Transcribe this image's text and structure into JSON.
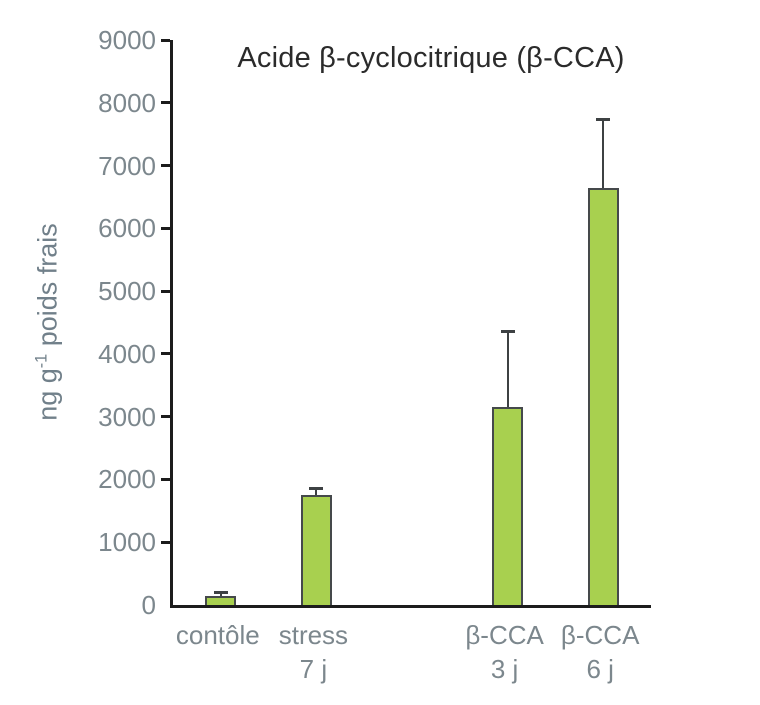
{
  "figure": {
    "background": "#ffffff"
  },
  "title": "Acide β-cyclocitrique (β-CCA)",
  "ylabel_parts": {
    "prefix": "ng g",
    "superscript": "-1",
    "suffix": " poids frais"
  },
  "chart_data": {
    "type": "bar",
    "title": "Acide β-cyclocitrique (β-CCA)",
    "ylabel": "ng g-1 poids frais",
    "xlabel": "",
    "ylim": [
      0,
      9000
    ],
    "ytick_step": 1000,
    "ytick_labels": [
      "0",
      "1000",
      "2000",
      "3000",
      "4000",
      "5000",
      "6000",
      "7000",
      "8000",
      "9000"
    ],
    "grid": false,
    "legend": false,
    "slots": 5,
    "categories": [
      "contôle",
      "stress 7 j",
      "",
      "β-CCA 3 j",
      "β-CCA 6 j"
    ],
    "bars": [
      {
        "slot": 0,
        "label_line1": "contôle",
        "label_line2": "",
        "value": 150,
        "error_plus": 70
      },
      {
        "slot": 1,
        "label_line1": "stress",
        "label_line2": "7 j",
        "value": 1750,
        "error_plus": 130
      },
      {
        "slot": 3,
        "label_line1": "β-CCA",
        "label_line2": "3 j",
        "value": 3150,
        "error_plus": 1230
      },
      {
        "slot": 4,
        "label_line1": "β-CCA",
        "label_line2": "6 j",
        "value": 6650,
        "error_plus": 1100
      }
    ],
    "colors": {
      "bar_fill": "#a8d04f",
      "bar_border": "#45494b",
      "axis": "#1c1c1c",
      "tick_label": "#7c878d",
      "title": "#2b2b2b",
      "ylabel": "#71808a"
    }
  }
}
